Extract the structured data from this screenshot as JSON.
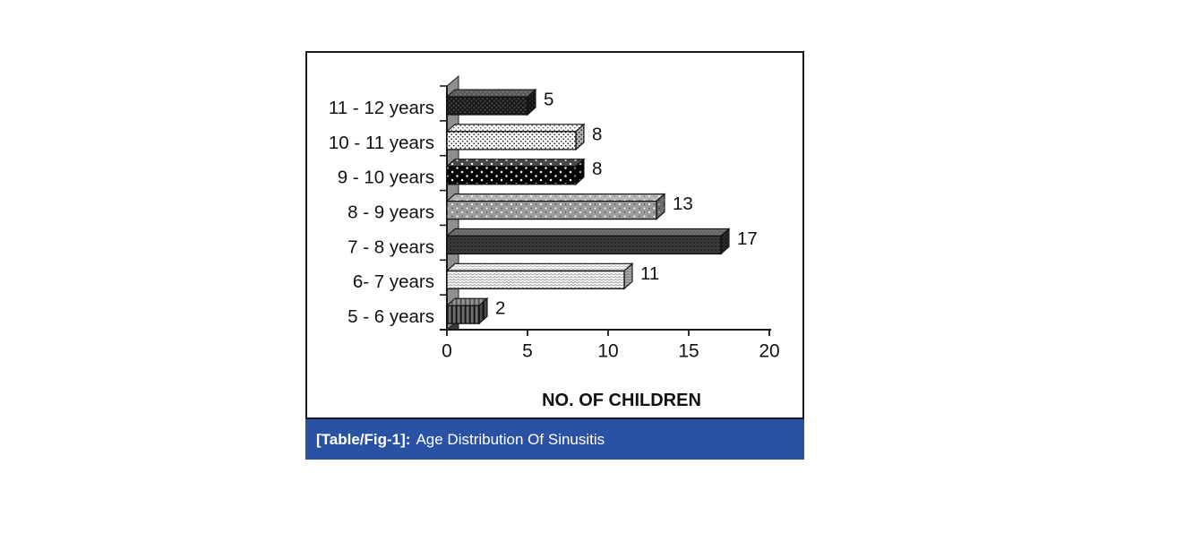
{
  "figure": {
    "caption": {
      "prefix": "[Table/Fig-1]:",
      "text": "Age Distribution Of Sinusitis",
      "bg_color": "#2a52a4",
      "text_color": "#ffffff"
    }
  },
  "chart_data": {
    "type": "bar",
    "orientation": "horizontal",
    "style": "3d-patterned",
    "title": "",
    "xlabel": "NO. OF CHILDREN",
    "ylabel": "",
    "categories": [
      "11 - 12 years",
      "10 - 11 years",
      "9 - 10 years",
      "8 - 9 years",
      "7 - 8 years",
      "6- 7 years",
      "5 - 6 years"
    ],
    "values": [
      5,
      8,
      8,
      13,
      17,
      11,
      2
    ],
    "data_labels": [
      5,
      8,
      8,
      13,
      17,
      11,
      2
    ],
    "bar_patterns": [
      "dark-dots",
      "light-dots",
      "black-sparse-dots",
      "gray-dots",
      "dark-weave",
      "light-waves",
      "gray-vlines"
    ],
    "xlim": [
      0,
      20
    ],
    "xticks": [
      0,
      5,
      10,
      15,
      20
    ],
    "grid": false,
    "legend": false,
    "wall_color": "#8f8f8f",
    "axis_color": "#1a1a1a"
  }
}
